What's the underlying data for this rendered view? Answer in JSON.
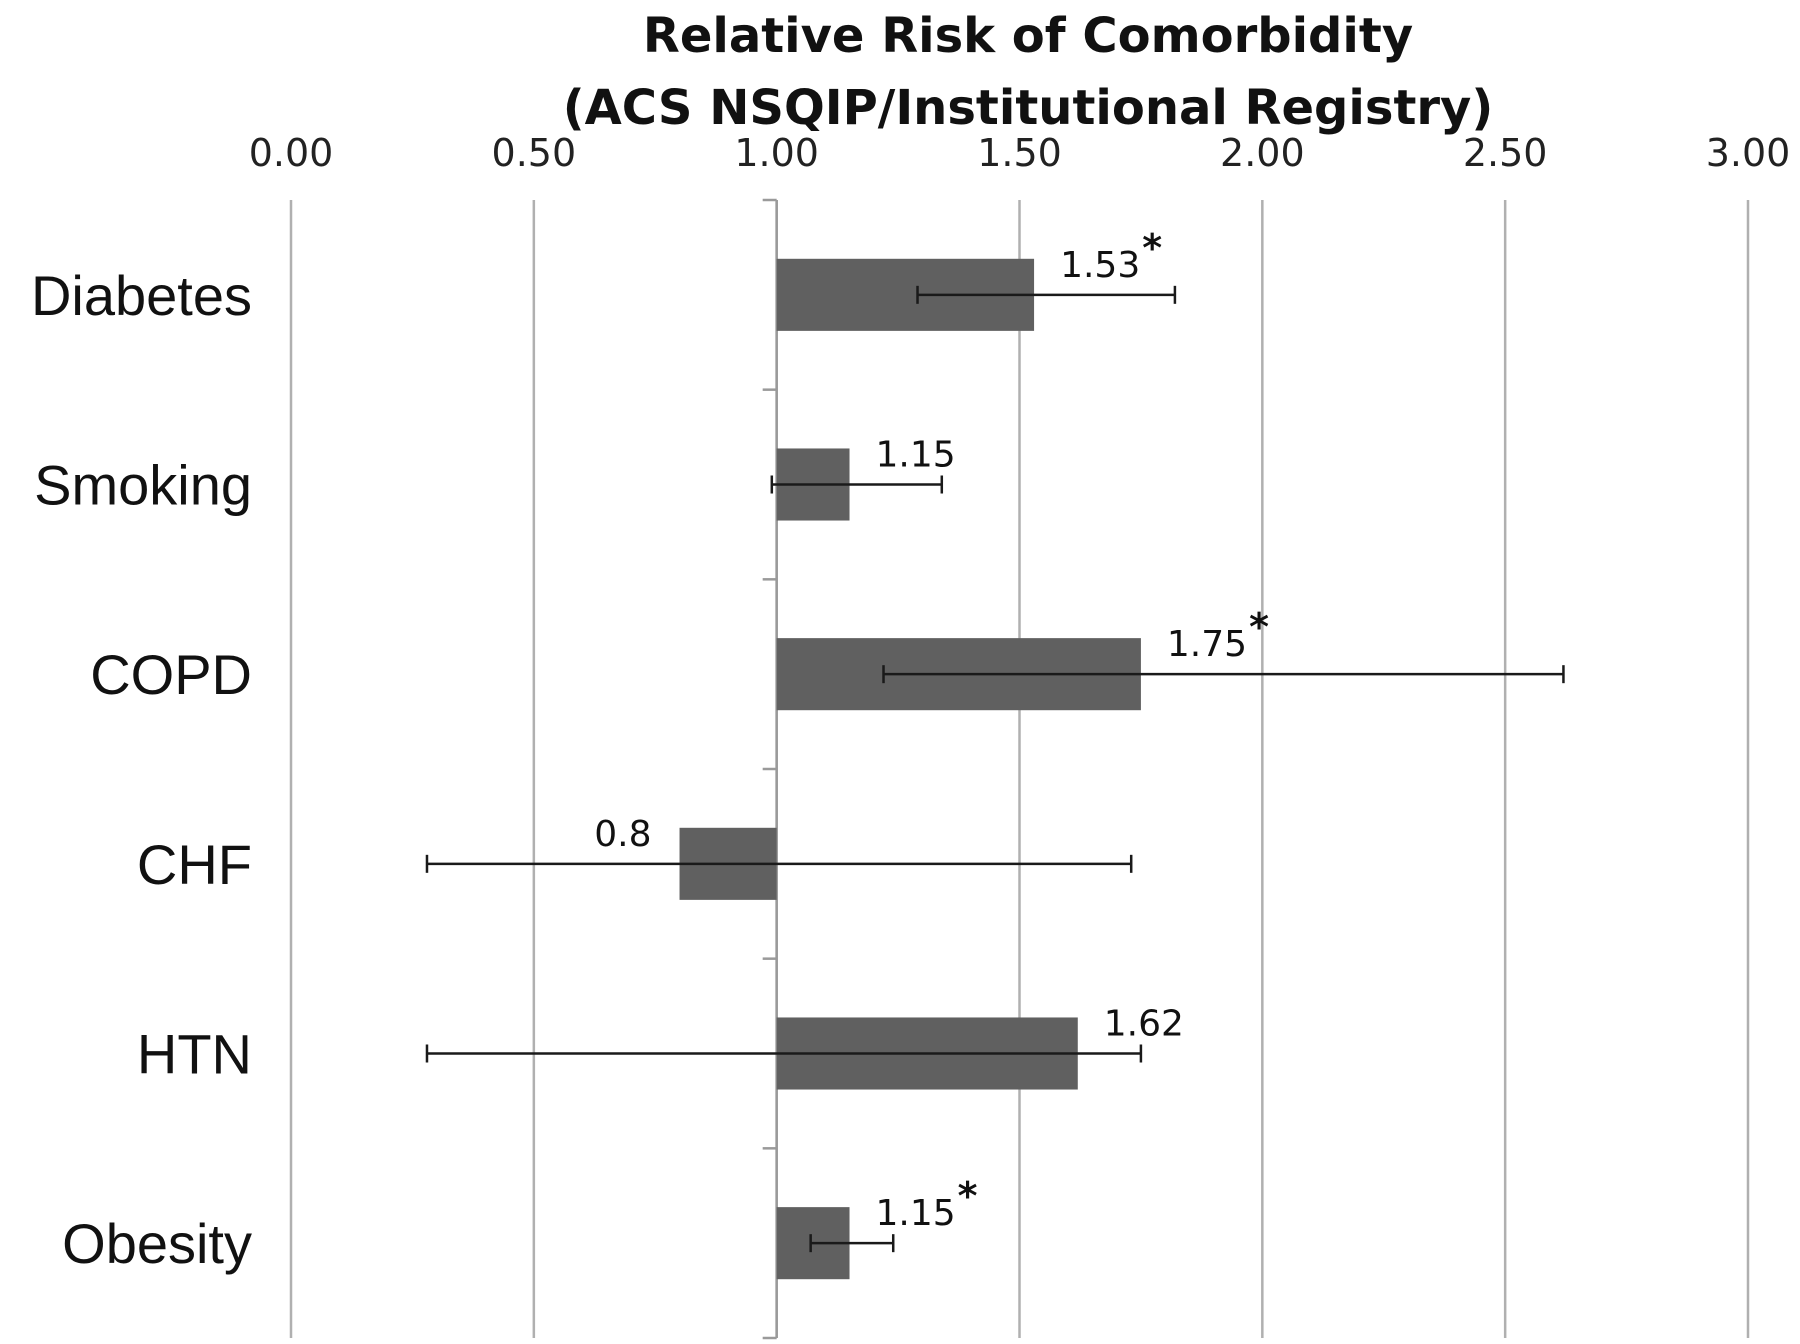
{
  "chart_data": {
    "type": "bar",
    "orientation": "horizontal",
    "title": [
      "Relative Risk of Comorbidity",
      "(ACS NSQIP/Institutional Registry)"
    ],
    "xlabel": "",
    "ylabel": "",
    "xlim": [
      0,
      3
    ],
    "xticks": [
      "0.00",
      "0.50",
      "1.00",
      "1.50",
      "2.00",
      "2.50",
      "3.00"
    ],
    "baseline": 1.0,
    "grid": true,
    "categories": [
      "Diabetes",
      "Smoking",
      "COPD",
      "CHF",
      "HTN",
      "Obesity"
    ],
    "values": [
      1.53,
      1.15,
      1.75,
      0.8,
      1.62,
      1.15
    ],
    "data_labels": [
      "1.53",
      "1.15",
      "1.75",
      "0.8",
      "1.62",
      "1.15"
    ],
    "significance": [
      "*",
      "",
      "*",
      "",
      "",
      "*"
    ],
    "error_low": [
      1.29,
      0.99,
      1.22,
      0.28,
      0.28,
      1.07
    ],
    "error_high": [
      1.82,
      1.34,
      2.62,
      1.73,
      1.75,
      1.24
    ],
    "bar_color": "#606060",
    "grid_color": "#b0b0b0"
  }
}
